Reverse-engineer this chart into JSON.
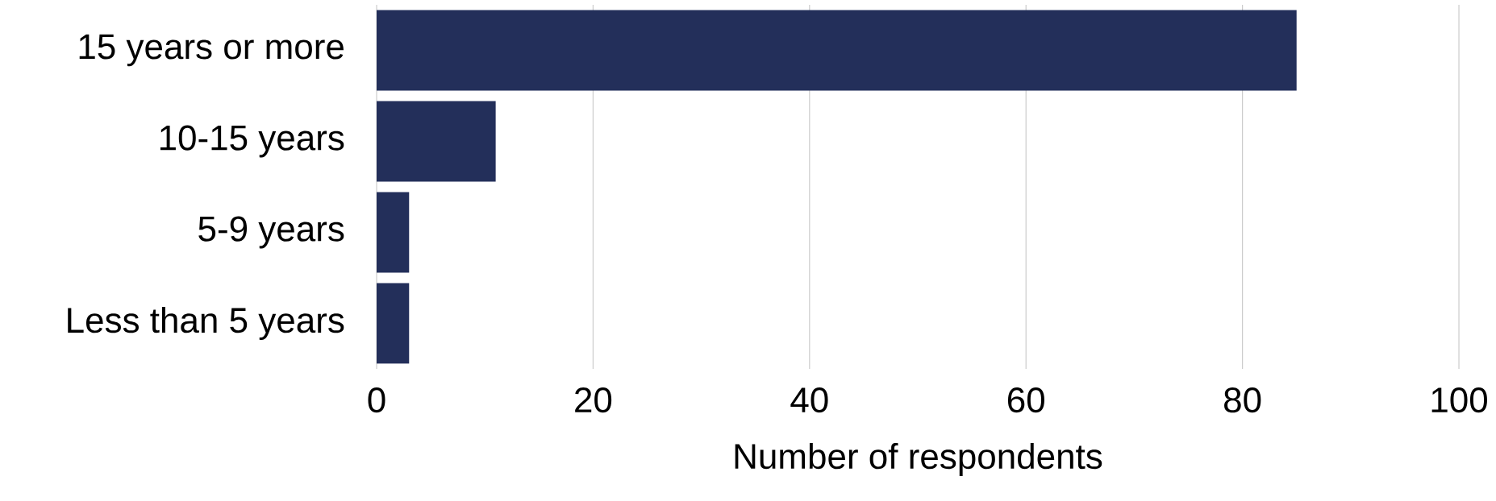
{
  "chart_data": {
    "type": "bar",
    "orientation": "horizontal",
    "xlabel": "Number of respondents",
    "categories": [
      "15 years or more",
      "10-15 years",
      "5-9 years",
      "Less than 5 years"
    ],
    "values": [
      85,
      11,
      3,
      3
    ],
    "color": "#232f5a",
    "xlim": [
      0,
      100
    ],
    "xticks": [
      0,
      20,
      40,
      60,
      80,
      100
    ],
    "grid": "x"
  }
}
